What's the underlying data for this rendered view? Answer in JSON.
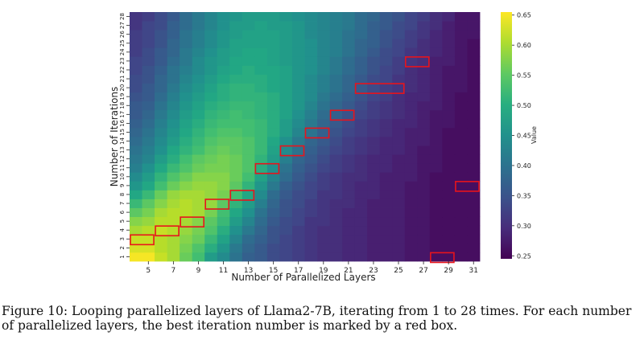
{
  "caption": "Figure 10: Looping parallelized layers of Llama2-7B, iterating from 1 to 28 times. For each number of parallelized layers, the best iteration number is marked by a red box.",
  "chart_data": {
    "type": "heatmap",
    "xlabel": "Number of Parallelized Layers",
    "ylabel": "Number of Iterations",
    "x_values": [
      4,
      5,
      6,
      7,
      8,
      9,
      10,
      11,
      12,
      13,
      14,
      15,
      16,
      17,
      18,
      19,
      20,
      21,
      22,
      23,
      24,
      25,
      26,
      27,
      28,
      29,
      30,
      31
    ],
    "x_ticks": [
      5,
      7,
      9,
      11,
      13,
      15,
      17,
      19,
      21,
      23,
      25,
      27,
      29,
      31
    ],
    "y_values": [
      1,
      2,
      3,
      4,
      5,
      6,
      7,
      8,
      9,
      10,
      11,
      12,
      13,
      14,
      15,
      16,
      17,
      18,
      19,
      20,
      21,
      22,
      23,
      24,
      25,
      26,
      27,
      28
    ],
    "y_ticks": [
      1,
      2,
      3,
      4,
      5,
      6,
      7,
      8,
      9,
      10,
      11,
      12,
      13,
      14,
      15,
      16,
      17,
      18,
      19,
      20,
      21,
      22,
      23,
      24,
      25,
      26,
      27,
      28
    ],
    "colorbar": {
      "label": "Value",
      "range": [
        0.245,
        0.655
      ],
      "ticks": [
        0.25,
        0.3,
        0.35,
        0.4,
        0.45,
        0.5,
        0.55,
        0.6,
        0.65
      ],
      "colormap": "viridis"
    },
    "highlight_color": "#e8141c",
    "best_iterations": [
      {
        "layers": 4,
        "iteration": 3
      },
      {
        "layers": 5,
        "iteration": 3
      },
      {
        "layers": 6,
        "iteration": 4
      },
      {
        "layers": 7,
        "iteration": 4
      },
      {
        "layers": 8,
        "iteration": 5
      },
      {
        "layers": 9,
        "iteration": 5
      },
      {
        "layers": 10,
        "iteration": 7
      },
      {
        "layers": 11,
        "iteration": 7
      },
      {
        "layers": 12,
        "iteration": 8
      },
      {
        "layers": 13,
        "iteration": 8
      },
      {
        "layers": 14,
        "iteration": 11
      },
      {
        "layers": 15,
        "iteration": 11
      },
      {
        "layers": 16,
        "iteration": 13
      },
      {
        "layers": 17,
        "iteration": 13
      },
      {
        "layers": 18,
        "iteration": 15
      },
      {
        "layers": 19,
        "iteration": 15
      },
      {
        "layers": 20,
        "iteration": 17
      },
      {
        "layers": 21,
        "iteration": 17
      },
      {
        "layers": 22,
        "iteration": 20
      },
      {
        "layers": 23,
        "iteration": 20
      },
      {
        "layers": 24,
        "iteration": 20
      },
      {
        "layers": 25,
        "iteration": 20
      },
      {
        "layers": 26,
        "iteration": 23
      },
      {
        "layers": 27,
        "iteration": 23
      },
      {
        "layers": 28,
        "iteration": 1
      },
      {
        "layers": 29,
        "iteration": 1
      },
      {
        "layers": 30,
        "iteration": 9
      },
      {
        "layers": 31,
        "iteration": 9
      }
    ],
    "values": [
      [
        0.65,
        0.65,
        0.62,
        0.6,
        0.56,
        0.53,
        0.47,
        0.44,
        0.4,
        0.37,
        0.36,
        0.34,
        0.33,
        0.32,
        0.31,
        0.3,
        0.3,
        0.29,
        0.29,
        0.28,
        0.28,
        0.28,
        0.27,
        0.27,
        0.26,
        0.26,
        0.26,
        0.26
      ],
      [
        0.63,
        0.63,
        0.61,
        0.6,
        0.57,
        0.54,
        0.5,
        0.46,
        0.41,
        0.38,
        0.36,
        0.34,
        0.33,
        0.32,
        0.31,
        0.3,
        0.3,
        0.29,
        0.29,
        0.28,
        0.28,
        0.28,
        0.27,
        0.27,
        0.26,
        0.26,
        0.26,
        0.26
      ],
      [
        0.62,
        0.62,
        0.61,
        0.6,
        0.58,
        0.56,
        0.52,
        0.48,
        0.43,
        0.39,
        0.37,
        0.35,
        0.33,
        0.32,
        0.31,
        0.3,
        0.3,
        0.29,
        0.29,
        0.28,
        0.28,
        0.28,
        0.27,
        0.27,
        0.26,
        0.26,
        0.26,
        0.26
      ],
      [
        0.6,
        0.61,
        0.62,
        0.61,
        0.59,
        0.57,
        0.54,
        0.5,
        0.45,
        0.41,
        0.38,
        0.35,
        0.34,
        0.32,
        0.31,
        0.3,
        0.3,
        0.29,
        0.29,
        0.28,
        0.28,
        0.28,
        0.27,
        0.27,
        0.26,
        0.26,
        0.26,
        0.26
      ],
      [
        0.58,
        0.59,
        0.61,
        0.61,
        0.6,
        0.58,
        0.55,
        0.52,
        0.47,
        0.43,
        0.39,
        0.36,
        0.34,
        0.33,
        0.31,
        0.31,
        0.3,
        0.29,
        0.29,
        0.28,
        0.28,
        0.28,
        0.27,
        0.27,
        0.26,
        0.26,
        0.26,
        0.26
      ],
      [
        0.55,
        0.57,
        0.6,
        0.61,
        0.61,
        0.6,
        0.57,
        0.53,
        0.49,
        0.45,
        0.4,
        0.37,
        0.35,
        0.33,
        0.32,
        0.31,
        0.3,
        0.29,
        0.29,
        0.28,
        0.28,
        0.28,
        0.27,
        0.27,
        0.26,
        0.26,
        0.26,
        0.26
      ],
      [
        0.52,
        0.55,
        0.58,
        0.6,
        0.61,
        0.6,
        0.59,
        0.55,
        0.51,
        0.47,
        0.42,
        0.38,
        0.35,
        0.34,
        0.32,
        0.31,
        0.3,
        0.3,
        0.29,
        0.28,
        0.28,
        0.28,
        0.27,
        0.27,
        0.26,
        0.26,
        0.26,
        0.26
      ],
      [
        0.49,
        0.52,
        0.56,
        0.59,
        0.6,
        0.6,
        0.59,
        0.57,
        0.53,
        0.49,
        0.44,
        0.39,
        0.36,
        0.34,
        0.33,
        0.31,
        0.31,
        0.3,
        0.29,
        0.29,
        0.28,
        0.28,
        0.27,
        0.27,
        0.26,
        0.26,
        0.26,
        0.26
      ],
      [
        0.46,
        0.49,
        0.53,
        0.56,
        0.58,
        0.59,
        0.59,
        0.58,
        0.55,
        0.51,
        0.46,
        0.41,
        0.37,
        0.35,
        0.33,
        0.32,
        0.31,
        0.3,
        0.29,
        0.29,
        0.28,
        0.28,
        0.27,
        0.27,
        0.26,
        0.26,
        0.26,
        0.26
      ],
      [
        0.44,
        0.47,
        0.51,
        0.54,
        0.56,
        0.58,
        0.58,
        0.58,
        0.56,
        0.53,
        0.48,
        0.43,
        0.39,
        0.36,
        0.34,
        0.32,
        0.31,
        0.3,
        0.3,
        0.29,
        0.28,
        0.28,
        0.28,
        0.27,
        0.26,
        0.26,
        0.26,
        0.26
      ],
      [
        0.42,
        0.45,
        0.49,
        0.52,
        0.54,
        0.56,
        0.57,
        0.57,
        0.56,
        0.54,
        0.5,
        0.45,
        0.4,
        0.37,
        0.35,
        0.33,
        0.32,
        0.31,
        0.3,
        0.29,
        0.29,
        0.28,
        0.28,
        0.27,
        0.27,
        0.26,
        0.26,
        0.26
      ],
      [
        0.41,
        0.43,
        0.47,
        0.5,
        0.53,
        0.55,
        0.56,
        0.57,
        0.56,
        0.54,
        0.51,
        0.47,
        0.42,
        0.38,
        0.36,
        0.34,
        0.32,
        0.31,
        0.3,
        0.29,
        0.29,
        0.28,
        0.28,
        0.27,
        0.27,
        0.26,
        0.26,
        0.26
      ],
      [
        0.4,
        0.42,
        0.45,
        0.49,
        0.51,
        0.53,
        0.55,
        0.56,
        0.55,
        0.54,
        0.52,
        0.48,
        0.44,
        0.4,
        0.37,
        0.35,
        0.33,
        0.32,
        0.31,
        0.3,
        0.29,
        0.29,
        0.28,
        0.27,
        0.27,
        0.26,
        0.26,
        0.26
      ],
      [
        0.39,
        0.41,
        0.44,
        0.47,
        0.5,
        0.52,
        0.54,
        0.55,
        0.55,
        0.54,
        0.52,
        0.49,
        0.45,
        0.41,
        0.38,
        0.36,
        0.34,
        0.32,
        0.31,
        0.3,
        0.29,
        0.29,
        0.28,
        0.28,
        0.27,
        0.26,
        0.26,
        0.26
      ],
      [
        0.38,
        0.4,
        0.43,
        0.46,
        0.49,
        0.51,
        0.53,
        0.54,
        0.54,
        0.53,
        0.52,
        0.5,
        0.47,
        0.43,
        0.4,
        0.37,
        0.35,
        0.33,
        0.32,
        0.31,
        0.3,
        0.29,
        0.28,
        0.28,
        0.27,
        0.26,
        0.26,
        0.26
      ],
      [
        0.37,
        0.39,
        0.42,
        0.45,
        0.48,
        0.5,
        0.52,
        0.53,
        0.53,
        0.53,
        0.52,
        0.5,
        0.47,
        0.44,
        0.41,
        0.38,
        0.36,
        0.34,
        0.32,
        0.31,
        0.3,
        0.29,
        0.29,
        0.28,
        0.27,
        0.27,
        0.26,
        0.26
      ],
      [
        0.36,
        0.38,
        0.41,
        0.44,
        0.47,
        0.49,
        0.51,
        0.52,
        0.53,
        0.52,
        0.51,
        0.5,
        0.48,
        0.45,
        0.42,
        0.39,
        0.37,
        0.35,
        0.33,
        0.32,
        0.31,
        0.3,
        0.29,
        0.28,
        0.27,
        0.27,
        0.26,
        0.26
      ],
      [
        0.36,
        0.37,
        0.4,
        0.43,
        0.46,
        0.48,
        0.5,
        0.51,
        0.52,
        0.52,
        0.51,
        0.5,
        0.48,
        0.46,
        0.43,
        0.4,
        0.38,
        0.36,
        0.34,
        0.32,
        0.31,
        0.3,
        0.29,
        0.28,
        0.28,
        0.27,
        0.26,
        0.26
      ],
      [
        0.35,
        0.36,
        0.39,
        0.42,
        0.45,
        0.47,
        0.49,
        0.5,
        0.51,
        0.51,
        0.51,
        0.5,
        0.48,
        0.46,
        0.44,
        0.41,
        0.39,
        0.37,
        0.35,
        0.33,
        0.32,
        0.3,
        0.29,
        0.29,
        0.28,
        0.27,
        0.26,
        0.26
      ],
      [
        0.34,
        0.36,
        0.38,
        0.41,
        0.44,
        0.46,
        0.48,
        0.5,
        0.51,
        0.51,
        0.5,
        0.49,
        0.48,
        0.46,
        0.44,
        0.42,
        0.4,
        0.38,
        0.36,
        0.34,
        0.32,
        0.31,
        0.3,
        0.29,
        0.28,
        0.27,
        0.27,
        0.26
      ],
      [
        0.34,
        0.35,
        0.38,
        0.4,
        0.43,
        0.45,
        0.47,
        0.49,
        0.5,
        0.5,
        0.5,
        0.49,
        0.48,
        0.46,
        0.44,
        0.42,
        0.4,
        0.38,
        0.36,
        0.34,
        0.33,
        0.31,
        0.3,
        0.29,
        0.28,
        0.27,
        0.27,
        0.26
      ],
      [
        0.33,
        0.35,
        0.37,
        0.4,
        0.42,
        0.44,
        0.46,
        0.48,
        0.49,
        0.5,
        0.49,
        0.49,
        0.48,
        0.46,
        0.45,
        0.43,
        0.41,
        0.39,
        0.37,
        0.35,
        0.33,
        0.32,
        0.3,
        0.29,
        0.28,
        0.27,
        0.27,
        0.26
      ],
      [
        0.33,
        0.34,
        0.36,
        0.39,
        0.41,
        0.44,
        0.46,
        0.47,
        0.49,
        0.49,
        0.49,
        0.48,
        0.47,
        0.46,
        0.45,
        0.43,
        0.41,
        0.39,
        0.37,
        0.35,
        0.34,
        0.32,
        0.31,
        0.3,
        0.28,
        0.28,
        0.27,
        0.26
      ],
      [
        0.32,
        0.34,
        0.36,
        0.38,
        0.41,
        0.43,
        0.45,
        0.47,
        0.48,
        0.49,
        0.49,
        0.48,
        0.47,
        0.46,
        0.45,
        0.43,
        0.42,
        0.4,
        0.38,
        0.36,
        0.34,
        0.33,
        0.31,
        0.3,
        0.29,
        0.28,
        0.27,
        0.26
      ],
      [
        0.32,
        0.33,
        0.35,
        0.38,
        0.4,
        0.42,
        0.44,
        0.46,
        0.48,
        0.48,
        0.48,
        0.48,
        0.47,
        0.46,
        0.45,
        0.43,
        0.42,
        0.4,
        0.38,
        0.37,
        0.35,
        0.33,
        0.32,
        0.3,
        0.29,
        0.28,
        0.27,
        0.26
      ],
      [
        0.32,
        0.33,
        0.35,
        0.37,
        0.4,
        0.42,
        0.44,
        0.46,
        0.47,
        0.48,
        0.48,
        0.48,
        0.47,
        0.46,
        0.44,
        0.43,
        0.42,
        0.4,
        0.39,
        0.37,
        0.35,
        0.34,
        0.32,
        0.31,
        0.29,
        0.28,
        0.27,
        0.27
      ],
      [
        0.31,
        0.33,
        0.34,
        0.37,
        0.39,
        0.41,
        0.43,
        0.45,
        0.47,
        0.47,
        0.48,
        0.47,
        0.47,
        0.46,
        0.44,
        0.43,
        0.42,
        0.41,
        0.39,
        0.37,
        0.36,
        0.34,
        0.33,
        0.31,
        0.3,
        0.28,
        0.27,
        0.27
      ],
      [
        0.31,
        0.32,
        0.34,
        0.36,
        0.39,
        0.41,
        0.43,
        0.45,
        0.46,
        0.47,
        0.47,
        0.47,
        0.46,
        0.45,
        0.44,
        0.43,
        0.42,
        0.41,
        0.39,
        0.38,
        0.36,
        0.35,
        0.33,
        0.32,
        0.3,
        0.29,
        0.27,
        0.27
      ]
    ]
  }
}
